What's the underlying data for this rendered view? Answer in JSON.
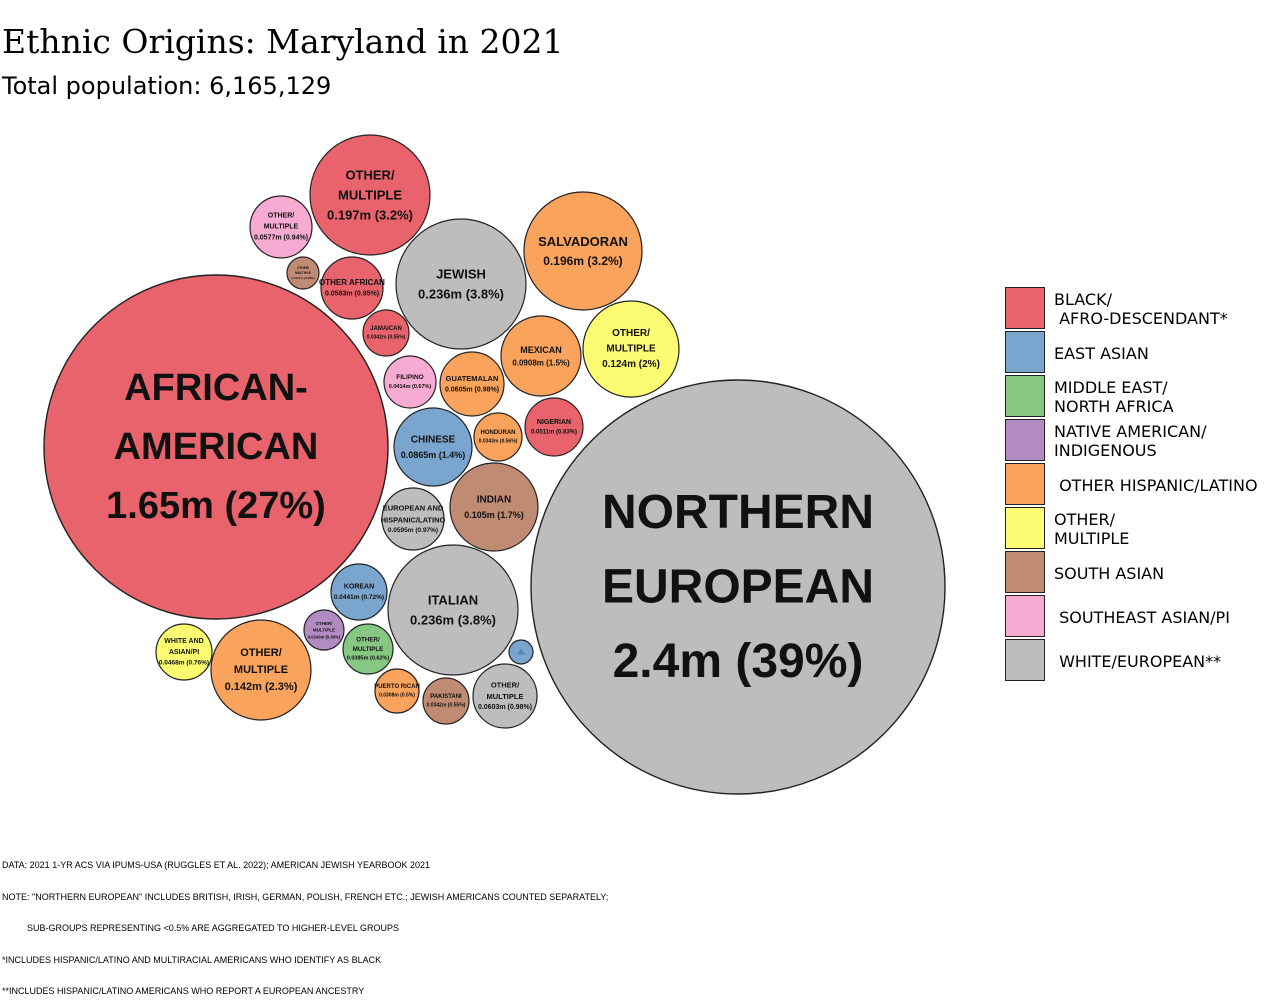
{
  "title": "Ethnic Origins: Maryland in 2021",
  "subtitle": "Total population: 6,165,129",
  "chart_data": {
    "type": "bubble",
    "title": "Ethnic Origins: Maryland in 2021",
    "subtitle": "Total population: 6,165,129",
    "total_population": 6165129,
    "categories": [
      {
        "key": "black",
        "label": "BLACK/\n AFRO-DESCENDANT*",
        "color": "#E8636B"
      },
      {
        "key": "east_asian",
        "label": "EAST ASIAN",
        "color": "#7AA5CE"
      },
      {
        "key": "mena",
        "label": "MIDDLE EAST/\nNORTH AFRICA",
        "color": "#86C883"
      },
      {
        "key": "native",
        "label": "NATIVE AMERICAN/\nINDIGENOUS",
        "color": "#B28BC3"
      },
      {
        "key": "hispanic",
        "label": " OTHER HISPANIC/LATINO",
        "color": "#F9A35C"
      },
      {
        "key": "other",
        "label": "OTHER/\nMULTIPLE",
        "color": "#FCFC72"
      },
      {
        "key": "south_asian",
        "label": "SOUTH ASIAN",
        "color": "#BF8B73"
      },
      {
        "key": "sea",
        "label": " SOUTHEAST ASIAN/PI",
        "color": "#F7AAD2"
      },
      {
        "key": "white",
        "label": " WHITE/EUROPEAN**",
        "color": "#BDBDBD"
      }
    ],
    "bubbles": [
      {
        "name": "AFRICAN-\nAMERICAN",
        "value_text": "1.65m (27%)",
        "value_millions": 1.65,
        "percent": 27,
        "category": "black"
      },
      {
        "name": "NORTHERN\nEUROPEAN",
        "value_text": "2.4m (39%)",
        "value_millions": 2.4,
        "percent": 39,
        "category": "white"
      },
      {
        "name": "OTHER/\nMULTIPLE",
        "value_text": "0.197m (3.2%)",
        "value_millions": 0.197,
        "percent": 3.2,
        "category": "black"
      },
      {
        "name": "JEWISH",
        "value_text": "0.236m (3.8%)",
        "value_millions": 0.236,
        "percent": 3.8,
        "category": "white"
      },
      {
        "name": "ITALIAN",
        "value_text": "0.236m (3.8%)",
        "value_millions": 0.236,
        "percent": 3.8,
        "category": "white"
      },
      {
        "name": "SALVADORAN",
        "value_text": "0.196m (3.2%)",
        "value_millions": 0.196,
        "percent": 3.2,
        "category": "hispanic"
      },
      {
        "name": "OTHER/\nMULTIPLE",
        "value_text": "0.142m (2.3%)",
        "value_millions": 0.142,
        "percent": 2.3,
        "category": "hispanic"
      },
      {
        "name": "OTHER/\nMULTIPLE",
        "value_text": "0.124m (2%)",
        "value_millions": 0.124,
        "percent": 2,
        "category": "other"
      },
      {
        "name": "INDIAN",
        "value_text": "0.105m (1.7%)",
        "value_millions": 0.105,
        "percent": 1.7,
        "category": "south_asian"
      },
      {
        "name": "MEXICAN",
        "value_text": "0.0908m (1.5%)",
        "value_millions": 0.0908,
        "percent": 1.5,
        "category": "hispanic"
      },
      {
        "name": "CHINESE",
        "value_text": "0.0865m (1.4%)",
        "value_millions": 0.0865,
        "percent": 1.4,
        "category": "east_asian"
      },
      {
        "name": "GUATEMALAN",
        "value_text": "0.0605m (0.98%)",
        "value_millions": 0.0605,
        "percent": 0.98,
        "category": "hispanic"
      },
      {
        "name": "OTHER/\nMULTIPLE",
        "value_text": "0.0603m (0.98%)",
        "value_millions": 0.0603,
        "percent": 0.98,
        "category": "white"
      },
      {
        "name": "EUROPEAN AND\nHISPANIC/LATINO",
        "value_text": "0.0595m (0.97%)",
        "value_millions": 0.0595,
        "percent": 0.97,
        "category": "white"
      },
      {
        "name": "OTHER AFRICAN",
        "value_text": "0.0583m (0.95%)",
        "value_millions": 0.0583,
        "percent": 0.95,
        "category": "black"
      },
      {
        "name": "OTHER/\nMULTIPLE",
        "value_text": "0.0577m (0.94%)",
        "value_millions": 0.0577,
        "percent": 0.94,
        "category": "sea"
      },
      {
        "name": "NIGERIAN",
        "value_text": "0.0511m (0.83%)",
        "value_millions": 0.0511,
        "percent": 0.83,
        "category": "black"
      },
      {
        "name": "WHITE AND\nASIAN/PI",
        "value_text": "0.0468m (0.76%)",
        "value_millions": 0.0468,
        "percent": 0.76,
        "category": "other"
      },
      {
        "name": "KOREAN",
        "value_text": "0.0441m (0.72%)",
        "value_millions": 0.0441,
        "percent": 0.72,
        "category": "east_asian"
      },
      {
        "name": "FILIPINO",
        "value_text": "0.0414m (0.67%)",
        "value_millions": 0.0414,
        "percent": 0.67,
        "category": "sea"
      },
      {
        "name": "OTHER/\nMULTIPLE",
        "value_text": "0.0385m (0.62%)",
        "value_millions": 0.0385,
        "percent": 0.62,
        "category": "mena"
      },
      {
        "name": "HONDURAN",
        "value_text": "0.0343m (0.56%)",
        "value_millions": 0.0343,
        "percent": 0.56,
        "category": "hispanic"
      },
      {
        "name": "JAMAICAN",
        "value_text": "0.0342m (0.55%)",
        "value_millions": 0.0342,
        "percent": 0.55,
        "category": "black"
      },
      {
        "name": "PAKISTANI",
        "value_text": "0.0342m (0.55%)",
        "value_millions": 0.0342,
        "percent": 0.55,
        "category": "south_asian"
      },
      {
        "name": "PUERTO RICAN",
        "value_text": "0.0308m (0.5%)",
        "value_millions": 0.0308,
        "percent": 0.5,
        "category": "hispanic"
      },
      {
        "name": "OTHER/\nMULTIPLE",
        "value_text": "0.0243m (0.39%)",
        "value_millions": 0.0243,
        "percent": 0.39,
        "category": "native"
      },
      {
        "name": "OTHER/\nMULTIPLE",
        "value_text": "0.0171m (0.28%)",
        "value_millions": 0.0171,
        "percent": 0.28,
        "category": "south_asian"
      },
      {
        "name": "",
        "value_text": "",
        "category": "east_asian"
      }
    ]
  },
  "legend": [
    {
      "label": "BLACK/\n AFRO-DESCENDANT*",
      "color": "#E8636B"
    },
    {
      "label": "EAST ASIAN",
      "color": "#7AA5CE"
    },
    {
      "label": "MIDDLE EAST/\nNORTH AFRICA",
      "color": "#86C883"
    },
    {
      "label": "NATIVE AMERICAN/\nINDIGENOUS",
      "color": "#B28BC3"
    },
    {
      "label": " OTHER HISPANIC/LATINO",
      "color": "#F9A35C"
    },
    {
      "label": "OTHER/\nMULTIPLE",
      "color": "#FCFC72"
    },
    {
      "label": "SOUTH ASIAN",
      "color": "#BF8B73"
    },
    {
      "label": " SOUTHEAST ASIAN/PI",
      "color": "#F7AAD2"
    },
    {
      "label": " WHITE/EUROPEAN**",
      "color": "#BDBDBD"
    }
  ],
  "notes": [
    "DATA: 2021 1-YR ACS VIA IPUMS-USA (RUGGLES ET AL. 2022); AMERICAN JEWISH YEARBOOK 2021",
    "NOTE: \"NORTHERN EUROPEAN\" INCLUDES BRITISH, IRISH, GERMAN, POLISH, FRENCH ETC.; JEWISH AMERICANS COUNTED SEPARATELY;",
    "          SUB-GROUPS REPRESENTING <0.5% ARE AGGREGATED TO HIGHER-LEVEL GROUPS",
    "*INCLUDES HISPANIC/LATINO AND MULTIRACIAL AMERICANS WHO IDENTIFY AS BLACK",
    "**INCLUDES HISPANIC/LATINO AMERICANS WHO REPORT A EUROPEAN ANCESTRY"
  ]
}
